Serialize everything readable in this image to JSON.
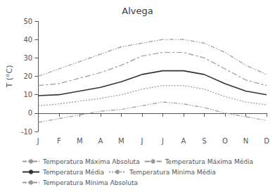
{
  "chart_data": {
    "type": "line",
    "title": "Alvega",
    "ylabel": "T (°C)",
    "categories": [
      "J",
      "F",
      "M",
      "A",
      "M",
      "J",
      "J",
      "A",
      "S",
      "O",
      "N",
      "D"
    ],
    "series": [
      {
        "name": "Temperatura Máxima Absoluta",
        "color": "#999999",
        "line_style": "dashdotdot",
        "values": [
          20,
          24,
          28,
          32,
          36,
          38,
          40,
          40,
          38,
          33,
          26,
          21
        ]
      },
      {
        "name": "Temperatura Máxima Média",
        "color": "#999999",
        "line_style": "dashed",
        "values": [
          15,
          16,
          19,
          22,
          26,
          31,
          33,
          33,
          30,
          24,
          18,
          15
        ]
      },
      {
        "name": "Temperatura Média",
        "color": "#333333",
        "line_style": "solid",
        "values": [
          9.5,
          10,
          12,
          14,
          17,
          21,
          23,
          23,
          21,
          16,
          12,
          10
        ]
      },
      {
        "name": "Temperatura Mínima Média",
        "color": "#999999",
        "line_style": "dotted",
        "values": [
          4,
          5,
          6.5,
          8,
          10,
          13,
          15,
          15,
          13,
          9,
          6,
          4.5
        ]
      },
      {
        "name": "Temperatura Mínima Absoluta",
        "color": "#999999",
        "line_style": "dashdotdot",
        "values": [
          -5,
          -3,
          -1,
          1,
          2,
          4,
          6,
          5,
          3,
          0,
          -2,
          -4
        ]
      }
    ],
    "ylim": [
      -10,
      50
    ],
    "yticks": [
      -10,
      0,
      10,
      20,
      30,
      40,
      50
    ],
    "grid": false,
    "legend": "bottom"
  }
}
